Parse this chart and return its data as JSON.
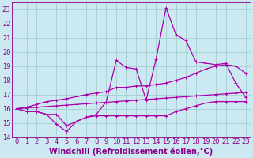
{
  "xlabel": "Windchill (Refroidissement éolien,°C)",
  "bg_color": "#cce8f0",
  "line_color": "#aa00aa",
  "grid_color": "#99cccc",
  "xlim": [
    -0.5,
    23.5
  ],
  "ylim": [
    14,
    23.5
  ],
  "xticks": [
    0,
    1,
    2,
    3,
    4,
    5,
    6,
    7,
    8,
    9,
    10,
    11,
    12,
    13,
    14,
    15,
    16,
    17,
    18,
    19,
    20,
    21,
    22,
    23
  ],
  "yticks": [
    14,
    15,
    16,
    17,
    18,
    19,
    20,
    21,
    22,
    23
  ],
  "series": [
    [
      16.0,
      15.8,
      15.8,
      15.6,
      14.9,
      14.4,
      15.1,
      15.4,
      15.5,
      15.5,
      15.5,
      15.5,
      15.5,
      15.5,
      15.5,
      15.5,
      15.8,
      16.0,
      16.2,
      16.4,
      16.5,
      16.5,
      16.5,
      16.5
    ],
    [
      16.0,
      16.05,
      16.1,
      16.15,
      16.2,
      16.25,
      16.3,
      16.35,
      16.4,
      16.45,
      16.5,
      16.55,
      16.6,
      16.65,
      16.7,
      16.75,
      16.8,
      16.85,
      16.9,
      16.95,
      17.0,
      17.05,
      17.1,
      17.15
    ],
    [
      16.0,
      16.1,
      16.3,
      16.5,
      16.6,
      16.7,
      16.85,
      17.0,
      17.1,
      17.2,
      17.5,
      17.5,
      17.6,
      17.6,
      17.7,
      17.8,
      18.0,
      18.2,
      18.5,
      18.8,
      19.0,
      19.1,
      19.0,
      18.5
    ],
    [
      16.0,
      15.8,
      15.8,
      15.6,
      15.6,
      14.8,
      15.1,
      15.4,
      15.6,
      16.5,
      19.4,
      18.9,
      18.8,
      16.6,
      19.5,
      23.1,
      21.2,
      20.8,
      19.3,
      19.2,
      19.1,
      19.2,
      17.8,
      16.8
    ]
  ],
  "font_color": "#880088",
  "tick_fontsize": 6,
  "label_fontsize": 7,
  "linewidth": 0.9,
  "marker": "+",
  "markersize": 2.5
}
